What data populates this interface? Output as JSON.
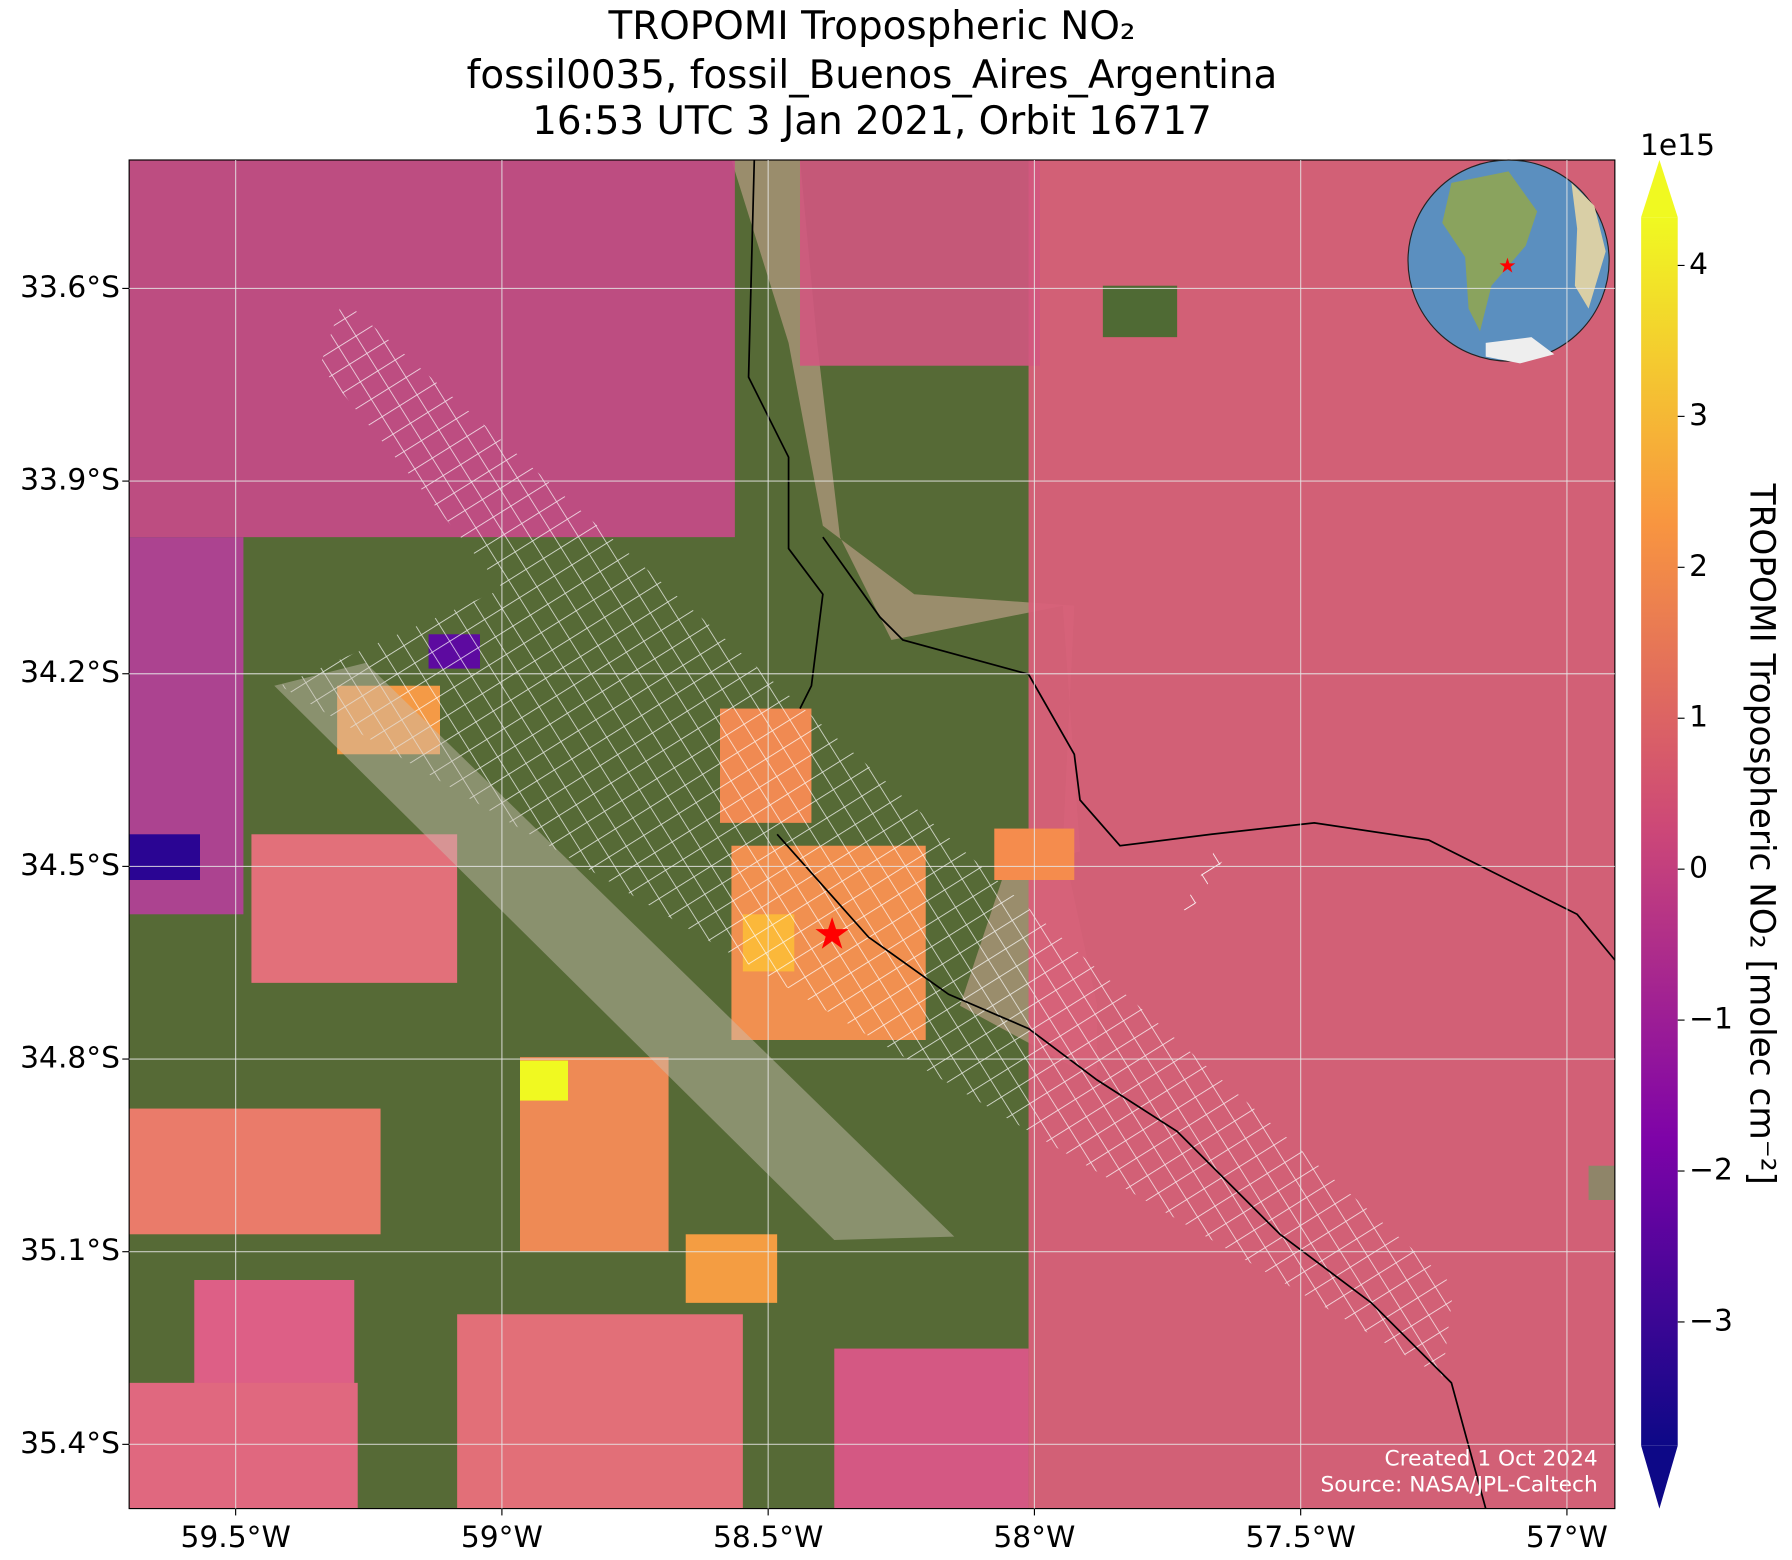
{
  "chart_data": {
    "type": "map",
    "title_lines": [
      "TROPOMI Tropospheric NO₂",
      "fossil0035, fossil_Buenos_Aires_Argentina",
      "16:53 UTC 3 Jan 2021, Orbit 16717"
    ],
    "xlim": [
      -59.7,
      -56.91
    ],
    "ylim": [
      -35.5,
      -33.4
    ],
    "xticks": [
      {
        "value": -59.5,
        "label": "59.5°W"
      },
      {
        "value": -59,
        "label": "59°W"
      },
      {
        "value": -58.5,
        "label": "58.5°W"
      },
      {
        "value": -58,
        "label": "58°W"
      },
      {
        "value": -57.5,
        "label": "57.5°W"
      },
      {
        "value": -57,
        "label": "57°W"
      }
    ],
    "yticks": [
      {
        "value": -33.6,
        "label": "33.6°S"
      },
      {
        "value": -33.9,
        "label": "33.9°S"
      },
      {
        "value": -34.2,
        "label": "34.2°S"
      },
      {
        "value": -34.5,
        "label": "34.5°S"
      },
      {
        "value": -34.8,
        "label": "34.8°S"
      },
      {
        "value": -35.1,
        "label": "35.1°S"
      },
      {
        "value": -35.4,
        "label": "35.4°S"
      }
    ],
    "grid": true,
    "colorbar": {
      "label": "TROPOMI Tropospheric NO₂ [molec cm⁻²]",
      "offset_label": "1e15",
      "lim": [
        -3.82,
        4.32
      ],
      "ticks": [
        {
          "value": -3,
          "label": "−3"
        },
        {
          "value": -2,
          "label": "−2"
        },
        {
          "value": -1,
          "label": "−1"
        },
        0,
        1,
        2,
        3,
        4
      ],
      "colormap": [
        "#0d0887",
        "#7e03a8",
        "#cc4778",
        "#f89540",
        "#f0f921"
      ],
      "extend": "both"
    },
    "site_marker": {
      "lon": -58.38,
      "lat": -34.61,
      "color": "#ff0000"
    },
    "annotations": [
      "Created 1 Oct 2024",
      "Source: NASA/JPL-Caltech"
    ]
  }
}
